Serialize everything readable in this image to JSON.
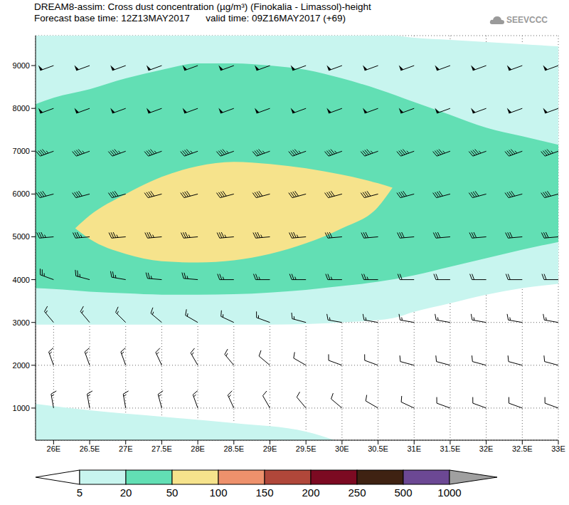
{
  "chart_data": {
    "type": "cross_section",
    "title": "DREAM8-assim: Cross dust concentration (µg/m³) (Finokalia - Limassol)-height",
    "subtitle": "Forecast base time: 12Z13MAY2017      valid time: 09Z16MAY2017 (+69)",
    "logo": "SEEVCCC",
    "xlim": [
      25.75,
      33
    ],
    "ylim": [
      250,
      9700
    ],
    "xticks": [
      {
        "value": 26,
        "label": "26E"
      },
      {
        "value": 26.5,
        "label": "26.5E"
      },
      {
        "value": 27,
        "label": "27E"
      },
      {
        "value": 27.5,
        "label": "27.5E"
      },
      {
        "value": 28,
        "label": "28E"
      },
      {
        "value": 28.5,
        "label": "28.5E"
      },
      {
        "value": 29,
        "label": "29E"
      },
      {
        "value": 29.5,
        "label": "29.5E"
      },
      {
        "value": 30,
        "label": "30E"
      },
      {
        "value": 30.5,
        "label": "30.5E"
      },
      {
        "value": 31,
        "label": "31E"
      },
      {
        "value": 31.5,
        "label": "31.5E"
      },
      {
        "value": 32,
        "label": "32E"
      },
      {
        "value": 32.5,
        "label": "32.5E"
      },
      {
        "value": 33,
        "label": "33E"
      }
    ],
    "yticks": [
      1000,
      2000,
      3000,
      4000,
      5000,
      6000,
      7000,
      8000,
      9000
    ],
    "grid": true,
    "colorbar": {
      "levels": [
        5,
        20,
        50,
        100,
        150,
        200,
        250,
        500,
        1000
      ],
      "colors": [
        "#ffffff",
        "#c8f5ef",
        "#62dfb4",
        "#f6e38c",
        "#ee916c",
        "#b0473a",
        "#7c0a22",
        "#3f2212",
        "#6c4894",
        "#a0a0a0"
      ]
    },
    "contours": [
      {
        "range": [
          5,
          20
        ],
        "x": [
          25.75,
          26,
          27,
          28,
          29,
          30,
          30.7,
          31,
          31.5,
          32,
          32.5,
          33
        ],
        "lower": [
          2950,
          2950,
          2950,
          2950,
          2950,
          3000,
          3100,
          3250,
          3450,
          3650,
          3800,
          3900
        ],
        "upper": [
          9700,
          9700,
          9700,
          9700,
          9700,
          9700,
          9700,
          9650,
          9600,
          9550,
          9500,
          9450
        ]
      },
      {
        "range": [
          5,
          20
        ],
        "x": [
          25.75,
          26.5,
          27.5,
          28.5,
          29.5,
          29.9
        ],
        "lower": [
          250,
          250,
          250,
          250,
          250,
          250
        ],
        "upper": [
          1100,
          950,
          800,
          650,
          450,
          250
        ]
      },
      {
        "range": [
          20,
          50
        ],
        "x": [
          25.75,
          26,
          26.5,
          27,
          27.5,
          28,
          28.5,
          29,
          29.5,
          30,
          30.5,
          31,
          31.5,
          32,
          32.5,
          33
        ],
        "lower": [
          3800,
          3780,
          3720,
          3680,
          3650,
          3650,
          3660,
          3700,
          3760,
          3850,
          3950,
          4100,
          4300,
          4500,
          4700,
          4880
        ],
        "upper": [
          8100,
          8250,
          8450,
          8700,
          8900,
          9050,
          9050,
          9000,
          8900,
          8700,
          8450,
          8150,
          7850,
          7550,
          7350,
          7150
        ]
      },
      {
        "range": [
          50,
          100
        ],
        "x": [
          26.3,
          26.5,
          27,
          27.5,
          28,
          28.5,
          29,
          29.5,
          30,
          30.5,
          30.7
        ],
        "lower": [
          5200,
          4950,
          4600,
          4430,
          4400,
          4450,
          4600,
          4850,
          5200,
          5700,
          6150
        ],
        "upper": [
          5200,
          5500,
          6000,
          6400,
          6650,
          6750,
          6700,
          6600,
          6450,
          6250,
          6150
        ]
      }
    ],
    "wind": {
      "x": [
        26,
        26.5,
        27,
        27.5,
        28,
        28.5,
        29,
        29.5,
        30,
        30.5,
        31,
        31.5,
        32,
        32.5,
        33
      ],
      "heights": [
        1000,
        2000,
        3000,
        4000,
        5000,
        6000,
        7000,
        8000,
        9000
      ],
      "direction": [
        [
          350,
          350,
          350,
          345,
          340,
          335,
          330,
          320,
          310,
          300,
          295,
          290,
          290,
          290,
          290
        ],
        [
          340,
          340,
          340,
          335,
          330,
          320,
          310,
          300,
          290,
          290,
          285,
          285,
          285,
          285,
          285
        ],
        [
          320,
          320,
          315,
          310,
          300,
          295,
          290,
          285,
          280,
          280,
          280,
          280,
          280,
          280,
          280
        ],
        [
          290,
          285,
          280,
          275,
          275,
          270,
          270,
          270,
          270,
          270,
          270,
          270,
          270,
          270,
          270
        ],
        [
          265,
          265,
          265,
          265,
          265,
          265,
          265,
          265,
          265,
          265,
          265,
          265,
          265,
          265,
          265
        ],
        [
          255,
          255,
          255,
          255,
          255,
          255,
          255,
          255,
          255,
          255,
          255,
          255,
          255,
          255,
          255
        ],
        [
          250,
          250,
          250,
          250,
          250,
          250,
          250,
          250,
          250,
          250,
          250,
          250,
          250,
          250,
          250
        ],
        [
          250,
          250,
          250,
          250,
          250,
          250,
          250,
          250,
          250,
          250,
          250,
          250,
          250,
          250,
          250
        ],
        [
          250,
          250,
          250,
          250,
          250,
          250,
          250,
          250,
          250,
          250,
          250,
          250,
          250,
          250,
          250
        ]
      ],
      "speed": [
        [
          15,
          15,
          15,
          15,
          15,
          15,
          10,
          10,
          10,
          10,
          10,
          10,
          10,
          10,
          10
        ],
        [
          15,
          15,
          15,
          15,
          15,
          15,
          10,
          10,
          10,
          10,
          10,
          10,
          10,
          10,
          10
        ],
        [
          15,
          15,
          15,
          15,
          15,
          15,
          15,
          15,
          15,
          15,
          15,
          15,
          15,
          15,
          15
        ],
        [
          25,
          25,
          25,
          25,
          25,
          25,
          25,
          25,
          25,
          25,
          20,
          20,
          20,
          20,
          20
        ],
        [
          35,
          35,
          35,
          35,
          35,
          35,
          35,
          35,
          30,
          30,
          30,
          30,
          30,
          30,
          30
        ],
        [
          40,
          40,
          40,
          40,
          40,
          40,
          40,
          40,
          40,
          40,
          40,
          40,
          40,
          40,
          40
        ],
        [
          45,
          45,
          45,
          45,
          45,
          45,
          45,
          45,
          45,
          45,
          45,
          45,
          45,
          45,
          45
        ],
        [
          50,
          50,
          50,
          50,
          50,
          50,
          50,
          50,
          50,
          50,
          50,
          50,
          50,
          50,
          50
        ],
        [
          50,
          50,
          50,
          50,
          50,
          50,
          50,
          50,
          50,
          50,
          50,
          50,
          50,
          50,
          50
        ]
      ]
    }
  }
}
